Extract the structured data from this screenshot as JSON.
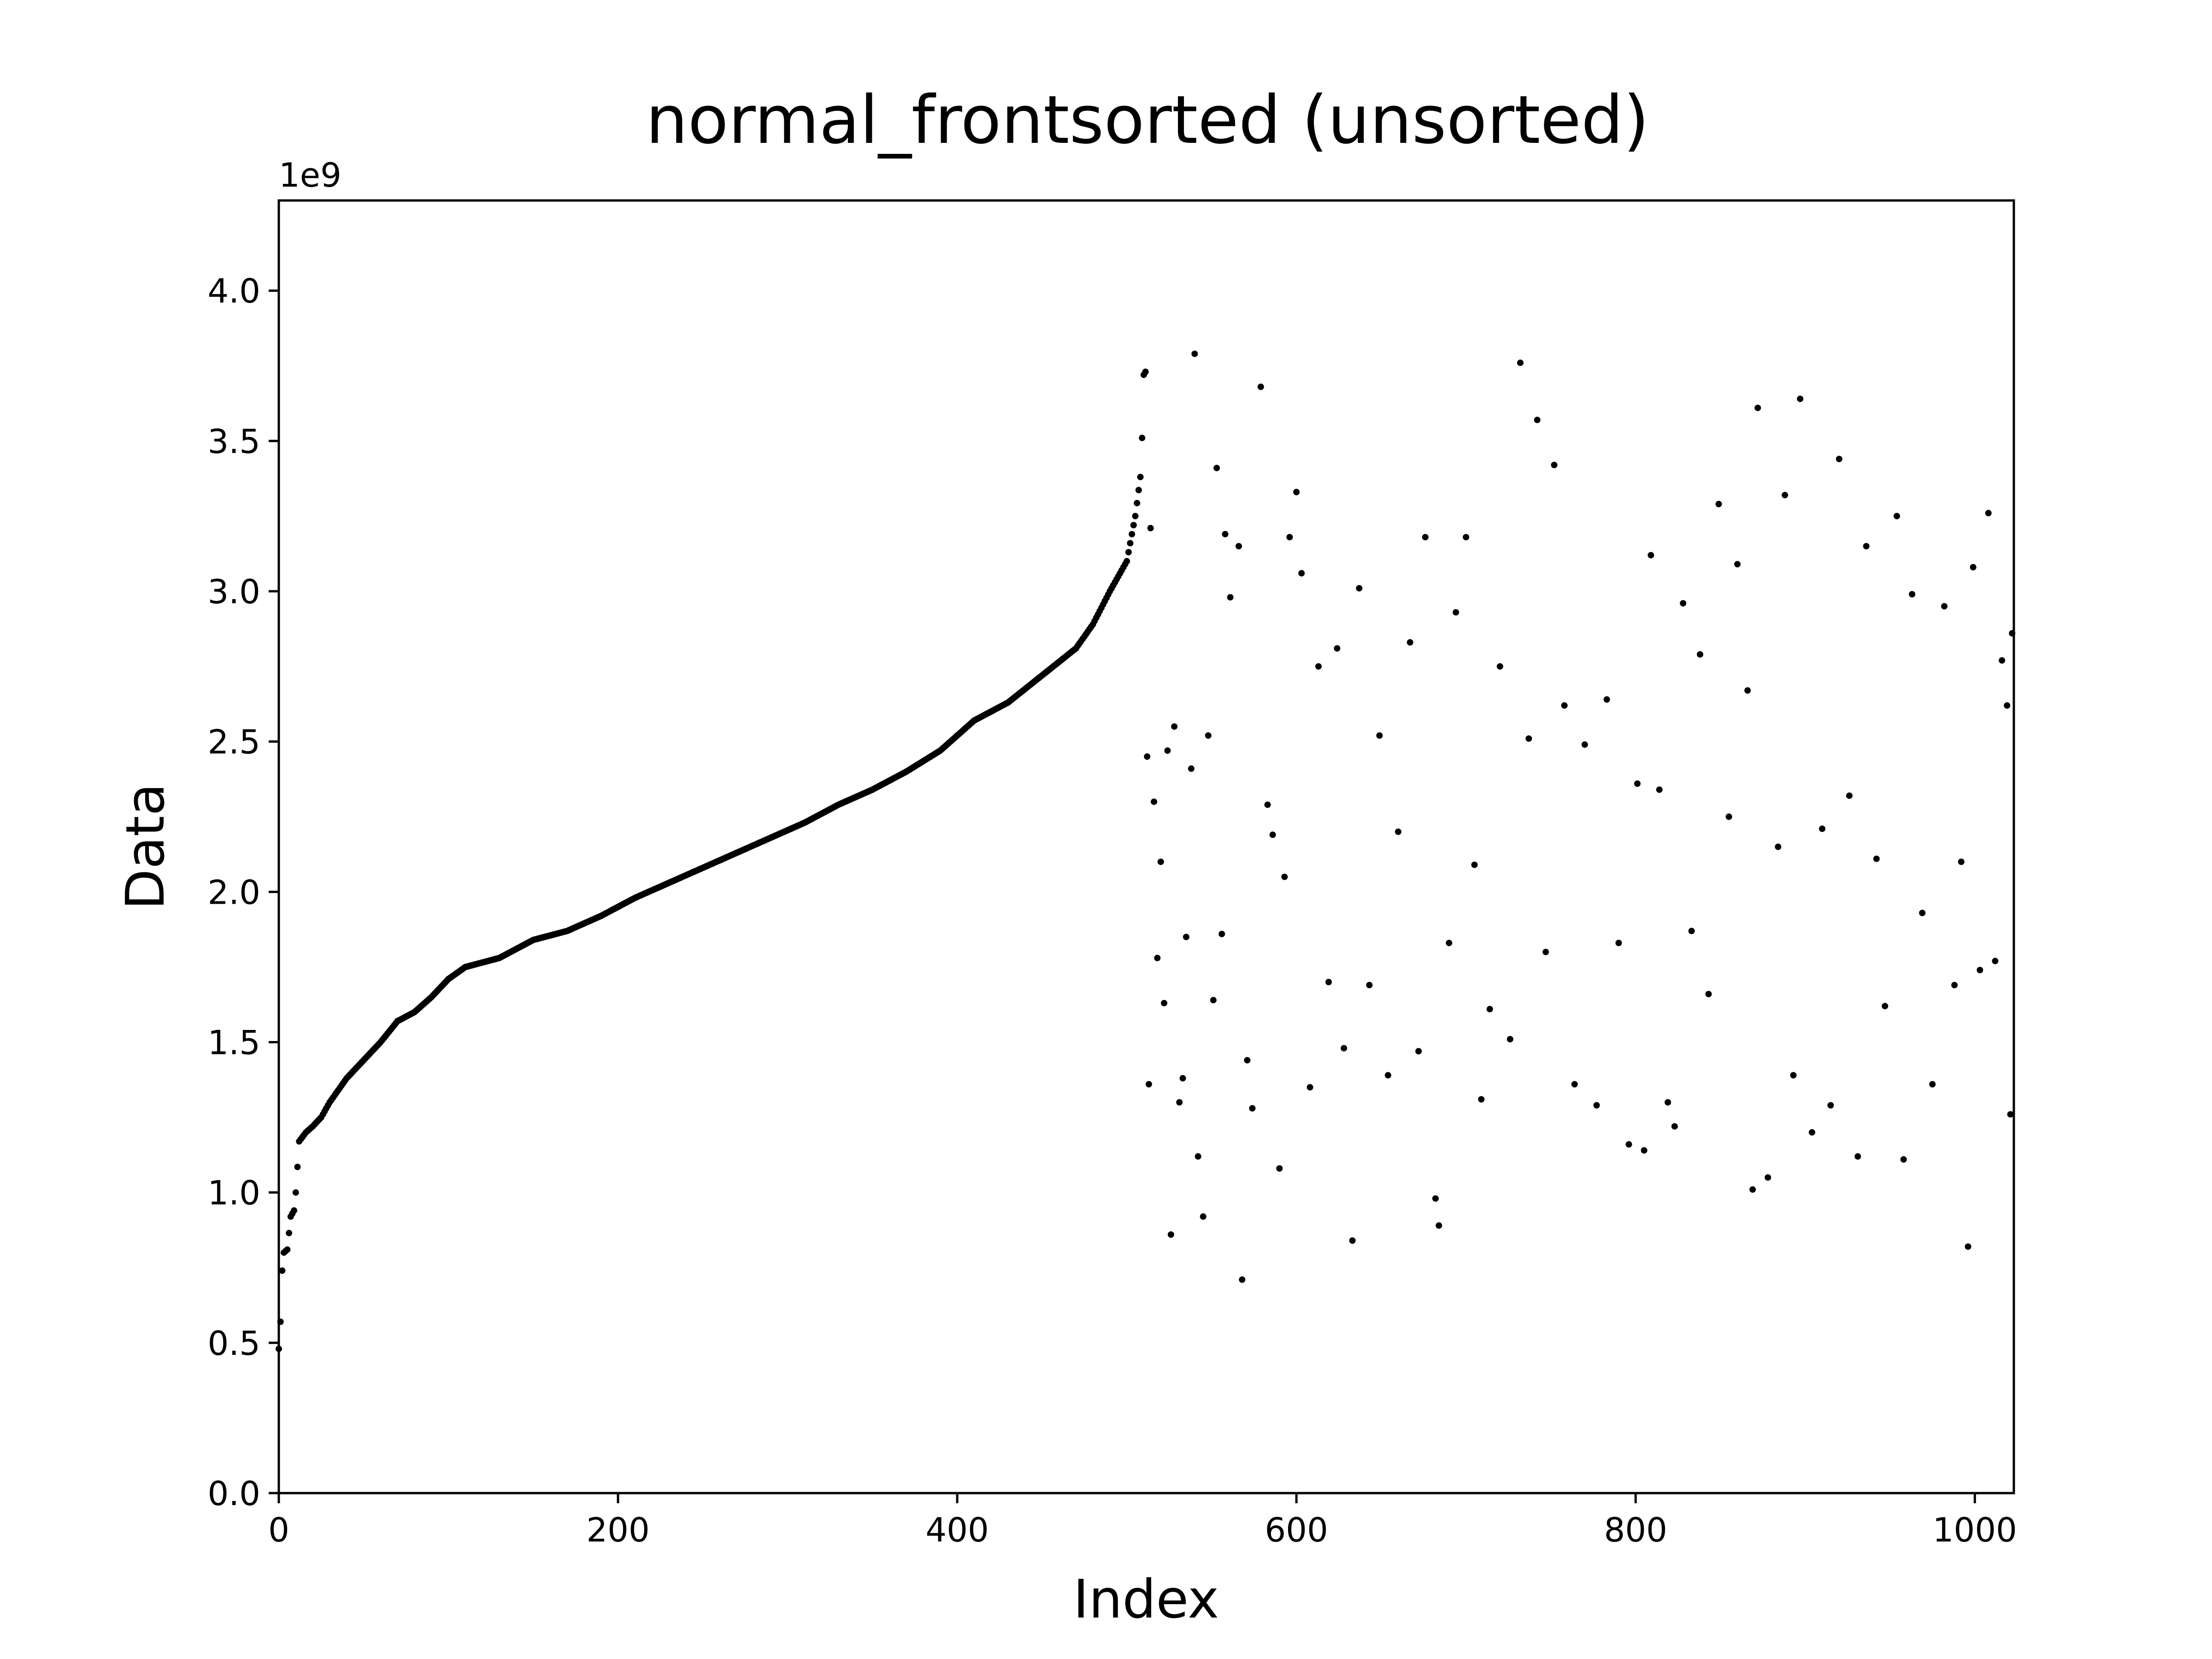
{
  "chart_data": {
    "type": "scatter",
    "title": "normal_frontsorted (unsorted)",
    "xlabel": "Index",
    "ylabel": "Data",
    "y_offset_label": "1e9",
    "xlim": [
      0,
      1023
    ],
    "ylim": [
      0,
      4.3
    ],
    "x_ticks": [
      0,
      200,
      400,
      600,
      800,
      1000
    ],
    "x_tick_labels": [
      "0",
      "200",
      "400",
      "600",
      "800",
      "1000"
    ],
    "y_ticks": [
      0,
      0.5,
      1.0,
      1.5,
      2.0,
      2.5,
      3.0,
      3.5,
      4.0
    ],
    "y_tick_labels": [
      "0.0",
      "0.5",
      "1.0",
      "1.5",
      "2.0",
      "2.5",
      "3.0",
      "3.5",
      "4.0"
    ],
    "grid": false,
    "marker_color": "#000000",
    "sorted_part": {
      "x_range": [
        0,
        511
      ],
      "y_at_index": [
        [
          0,
          0.48
        ],
        [
          1,
          0.57
        ],
        [
          2,
          0.74
        ],
        [
          3,
          0.8
        ],
        [
          5,
          0.81
        ],
        [
          7,
          0.92
        ],
        [
          9,
          0.94
        ],
        [
          10,
          1.0
        ],
        [
          12,
          1.17
        ],
        [
          16,
          1.2
        ],
        [
          20,
          1.22
        ],
        [
          25,
          1.25
        ],
        [
          30,
          1.3
        ],
        [
          40,
          1.38
        ],
        [
          50,
          1.44
        ],
        [
          60,
          1.5
        ],
        [
          70,
          1.57
        ],
        [
          80,
          1.6
        ],
        [
          90,
          1.65
        ],
        [
          100,
          1.71
        ],
        [
          110,
          1.75
        ],
        [
          130,
          1.78
        ],
        [
          150,
          1.84
        ],
        [
          170,
          1.87
        ],
        [
          190,
          1.92
        ],
        [
          210,
          1.98
        ],
        [
          230,
          2.03
        ],
        [
          250,
          2.08
        ],
        [
          270,
          2.13
        ],
        [
          290,
          2.18
        ],
        [
          310,
          2.23
        ],
        [
          330,
          2.29
        ],
        [
          350,
          2.34
        ],
        [
          370,
          2.4
        ],
        [
          390,
          2.47
        ],
        [
          410,
          2.57
        ],
        [
          430,
          2.63
        ],
        [
          450,
          2.72
        ],
        [
          470,
          2.81
        ],
        [
          480,
          2.89
        ],
        [
          490,
          3.0
        ],
        [
          500,
          3.1
        ],
        [
          505,
          3.25
        ],
        [
          508,
          3.38
        ],
        [
          509,
          3.51
        ],
        [
          510,
          3.72
        ],
        [
          511,
          3.73
        ]
      ]
    },
    "scatter_part": {
      "x_range": [
        512,
        1023
      ],
      "points": [
        [
          512,
          2.45
        ],
        [
          513,
          1.36
        ],
        [
          514,
          3.21
        ],
        [
          516,
          2.3
        ],
        [
          518,
          1.78
        ],
        [
          520,
          2.1
        ],
        [
          522,
          1.63
        ],
        [
          524,
          2.47
        ],
        [
          526,
          0.86
        ],
        [
          528,
          2.55
        ],
        [
          531,
          1.3
        ],
        [
          533,
          1.38
        ],
        [
          535,
          1.85
        ],
        [
          538,
          2.41
        ],
        [
          540,
          3.79
        ],
        [
          542,
          1.12
        ],
        [
          545,
          0.92
        ],
        [
          548,
          2.52
        ],
        [
          551,
          1.64
        ],
        [
          553,
          3.41
        ],
        [
          556,
          1.86
        ],
        [
          558,
          3.19
        ],
        [
          561,
          2.98
        ],
        [
          566,
          3.15
        ],
        [
          568,
          0.71
        ],
        [
          571,
          1.44
        ],
        [
          574,
          1.28
        ],
        [
          579,
          3.68
        ],
        [
          583,
          2.29
        ],
        [
          586,
          2.19
        ],
        [
          590,
          1.08
        ],
        [
          593,
          2.05
        ],
        [
          596,
          3.18
        ],
        [
          600,
          3.33
        ],
        [
          603,
          3.06
        ],
        [
          608,
          1.35
        ],
        [
          613,
          2.75
        ],
        [
          619,
          1.7
        ],
        [
          624,
          2.81
        ],
        [
          628,
          1.48
        ],
        [
          633,
          0.84
        ],
        [
          637,
          3.01
        ],
        [
          643,
          1.69
        ],
        [
          649,
          2.52
        ],
        [
          654,
          1.39
        ],
        [
          660,
          2.2
        ],
        [
          667,
          2.83
        ],
        [
          672,
          1.47
        ],
        [
          676,
          3.18
        ],
        [
          682,
          0.98
        ],
        [
          684,
          0.89
        ],
        [
          690,
          1.83
        ],
        [
          694,
          2.93
        ],
        [
          700,
          3.18
        ],
        [
          705,
          2.09
        ],
        [
          709,
          1.31
        ],
        [
          714,
          1.61
        ],
        [
          720,
          2.75
        ],
        [
          726,
          1.51
        ],
        [
          732,
          3.76
        ],
        [
          737,
          2.51
        ],
        [
          742,
          3.57
        ],
        [
          747,
          1.8
        ],
        [
          752,
          3.42
        ],
        [
          758,
          2.62
        ],
        [
          764,
          1.36
        ],
        [
          770,
          2.49
        ],
        [
          777,
          1.29
        ],
        [
          783,
          2.64
        ],
        [
          790,
          1.83
        ],
        [
          796,
          1.16
        ],
        [
          801,
          2.36
        ],
        [
          805,
          1.14
        ],
        [
          809,
          3.12
        ],
        [
          814,
          2.34
        ],
        [
          819,
          1.3
        ],
        [
          823,
          1.22
        ],
        [
          828,
          2.96
        ],
        [
          833,
          1.87
        ],
        [
          838,
          2.79
        ],
        [
          843,
          1.66
        ],
        [
          849,
          3.29
        ],
        [
          855,
          2.25
        ],
        [
          860,
          3.09
        ],
        [
          866,
          2.67
        ],
        [
          869,
          1.01
        ],
        [
          872,
          3.61
        ],
        [
          878,
          1.05
        ],
        [
          884,
          2.15
        ],
        [
          888,
          3.32
        ],
        [
          893,
          1.39
        ],
        [
          897,
          3.64
        ],
        [
          904,
          1.2
        ],
        [
          910,
          2.21
        ],
        [
          915,
          1.29
        ],
        [
          920,
          3.44
        ],
        [
          926,
          2.32
        ],
        [
          931,
          1.12
        ],
        [
          936,
          3.15
        ],
        [
          942,
          2.11
        ],
        [
          947,
          1.62
        ],
        [
          954,
          3.25
        ],
        [
          958,
          1.11
        ],
        [
          963,
          2.99
        ],
        [
          969,
          1.93
        ],
        [
          975,
          1.36
        ],
        [
          982,
          2.95
        ],
        [
          988,
          1.69
        ],
        [
          992,
          2.1
        ],
        [
          996,
          0.82
        ],
        [
          999,
          3.08
        ],
        [
          1003,
          1.74
        ],
        [
          1008,
          3.26
        ],
        [
          1012,
          1.77
        ],
        [
          1016,
          2.77
        ],
        [
          1019,
          2.62
        ],
        [
          1021,
          1.26
        ],
        [
          1022,
          2.86
        ]
      ]
    }
  }
}
